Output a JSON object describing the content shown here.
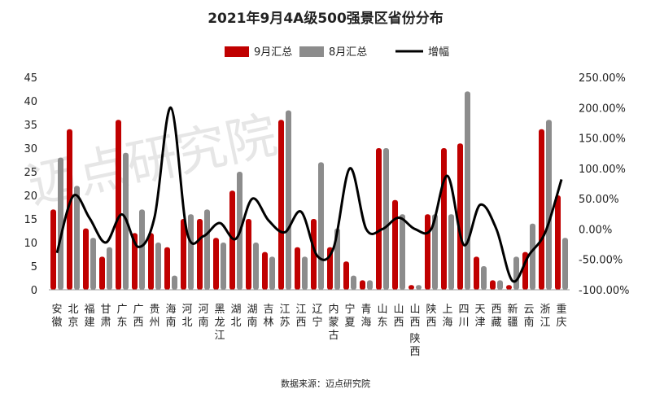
{
  "chart_data": {
    "type": "bar",
    "title": "2021年9月4A级500强景区省份分布",
    "categories": [
      "安徽",
      "北京",
      "福建",
      "甘肃",
      "广东",
      "广西",
      "贵州",
      "海南",
      "河北",
      "河南",
      "黑龙江",
      "湖北",
      "湖南",
      "吉林",
      "江苏",
      "江西",
      "辽宁",
      "内蒙古",
      "宁夏",
      "青海",
      "山东",
      "山西",
      "山西-陕西",
      "陕西",
      "上海",
      "四川",
      "天津",
      "西藏",
      "新疆",
      "云南",
      "浙江",
      "重庆"
    ],
    "series": [
      {
        "name": "9月汇总",
        "type": "bar",
        "color": "#c00000",
        "values": [
          17,
          34,
          13,
          7,
          36,
          12,
          12,
          9,
          15,
          15,
          11,
          21,
          15,
          8,
          36,
          9,
          15,
          9,
          6,
          2,
          30,
          19,
          1,
          16,
          30,
          31,
          7,
          2,
          1,
          8,
          34,
          20
        ]
      },
      {
        "name": "8月汇总",
        "type": "bar",
        "color": "#8c8c8c",
        "values": [
          28,
          22,
          11,
          9,
          29,
          17,
          10,
          3,
          16,
          17,
          10,
          25,
          10,
          7,
          38,
          7,
          27,
          13,
          3,
          2,
          30,
          16,
          1,
          16,
          16,
          42,
          5,
          2,
          7,
          14,
          36,
          11
        ]
      },
      {
        "name": "增幅",
        "type": "line",
        "axis": "right",
        "color": "#000000",
        "values": [
          -39.29,
          54.55,
          18.18,
          -22.22,
          24.14,
          -29.41,
          20,
          200,
          -6.25,
          -11.76,
          10,
          -16,
          50,
          14.29,
          -5.26,
          28.57,
          -44.44,
          -30.77,
          100,
          0,
          0,
          18.75,
          0,
          0,
          87.5,
          -26.19,
          40,
          0,
          -85.71,
          -42.86,
          -5.56,
          81.82
        ]
      }
    ],
    "y_left": {
      "min": 0,
      "max": 45,
      "ticks": [
        "0",
        "5",
        "10",
        "15",
        "20",
        "25",
        "30",
        "35",
        "40",
        "45"
      ]
    },
    "y_right": {
      "min": -100,
      "max": 250,
      "ticks": [
        "-100.00%",
        "-50.00%",
        "0.00%",
        "50.00%",
        "100.00%",
        "150.00%",
        "200.00%",
        "250.00%"
      ]
    },
    "legend": {
      "position": "top-center",
      "items": [
        "9月汇总",
        "8月汇总",
        "增幅"
      ]
    },
    "source": "数据来源：迈点研究院",
    "watermark": "迈点研究院",
    "grid": false
  }
}
